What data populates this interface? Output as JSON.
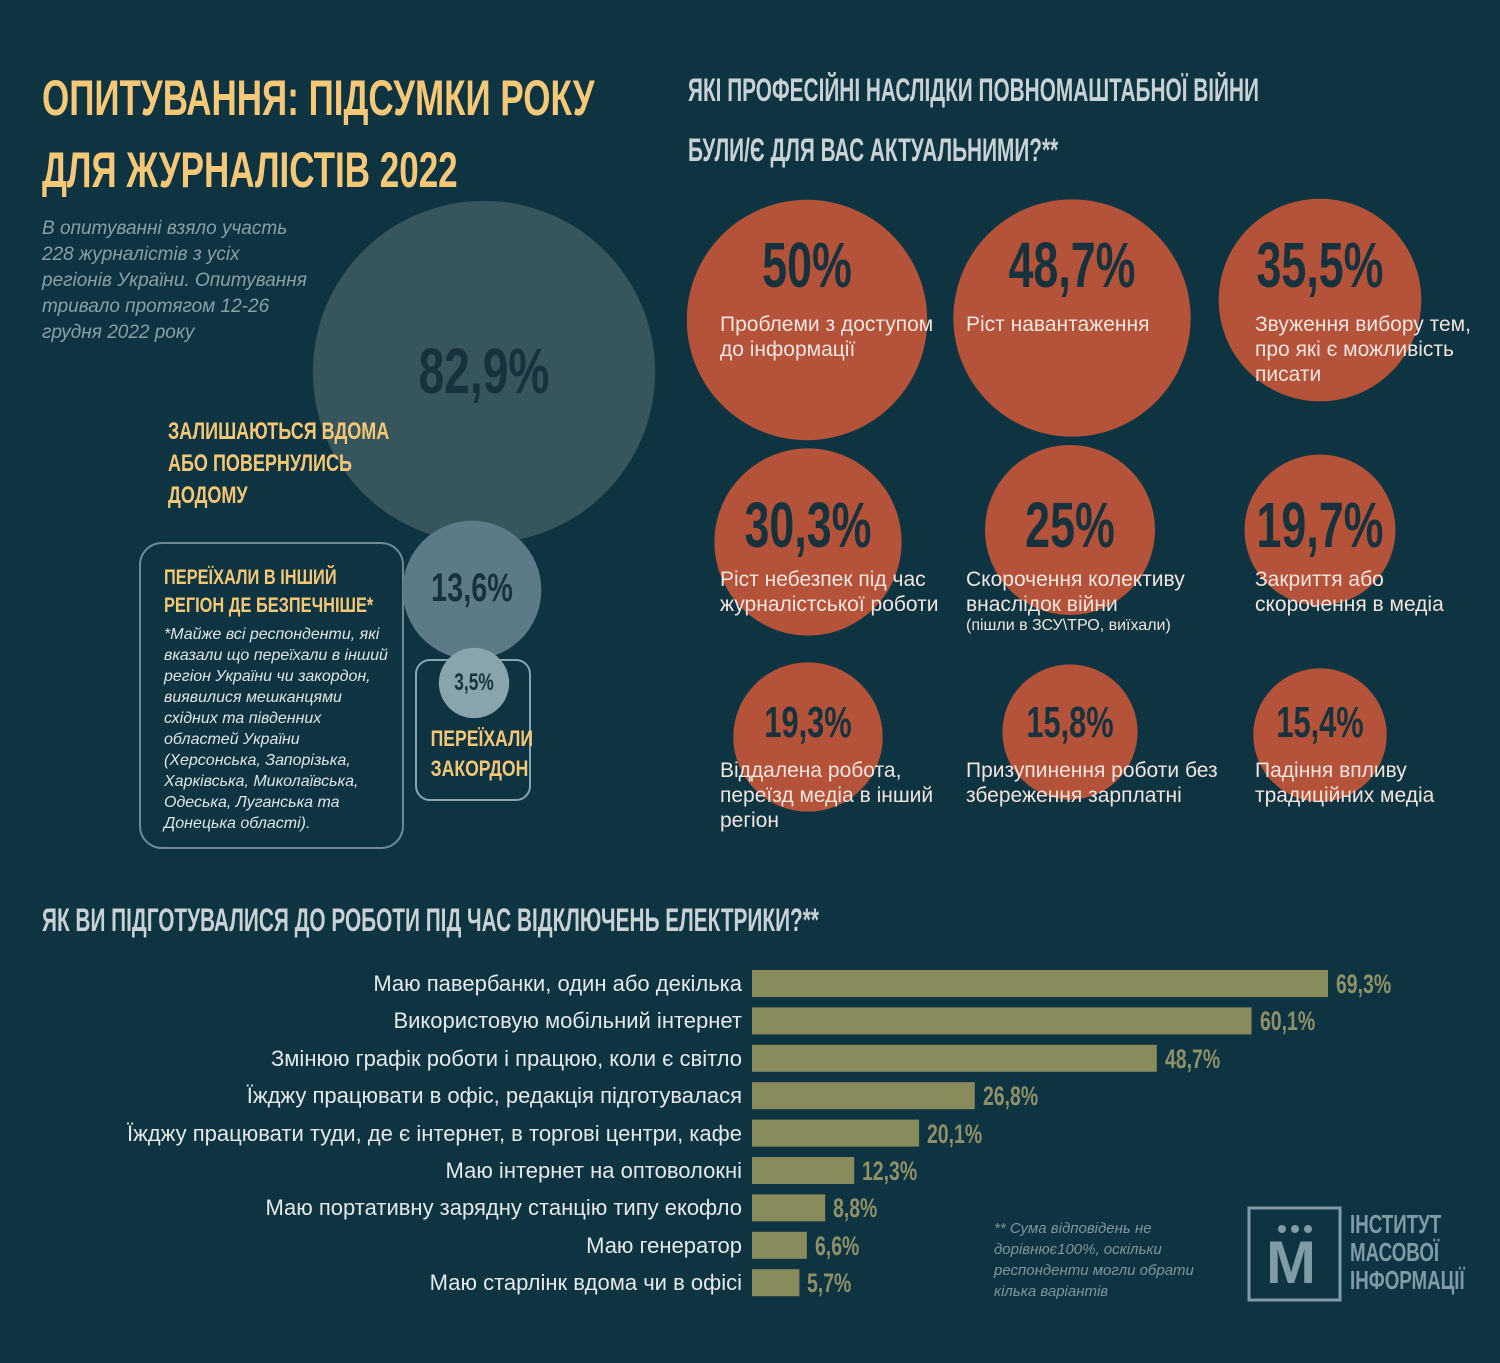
{
  "title": "ОПИТУВАННЯ: ПІДСУМКИ РОКУ ДЛЯ ЖУРНАЛІСТІВ 2022",
  "intro": "В опитуванні взяло участь 228 журналістів з усіх регіонів України. Опитування тривало протягом 12-26 грудня 2022 року",
  "footnote": "** Сума відповідень не дорівнює100%, оскільки респонденти могли обрати кілька варіантів",
  "logo": {
    "mark": "М",
    "text": "ІНСТИТУТ МАСОВОЇ ІНФОРМАЦІЇ"
  },
  "chart_data": [
    {
      "type": "bubble",
      "categories": [
        "ЗАЛИШАЮТЬСЯ ВДОМА АБО ПОВЕРНУЛИСЬ ДОДОМУ",
        "ПЕРЕЇХАЛИ В ІНШИЙ РЕГІОН ДЕ БЕЗПЕЧНІШЕ*",
        "ПЕРЕЇХАЛИ ЗАКОРДОН"
      ],
      "values": [
        82.9,
        13.6,
        3.5
      ],
      "value_labels": [
        "82,9%",
        "13,6%",
        "3,5%"
      ],
      "notes": [
        null,
        "*Майже всі респонденти, які вказали що переїхали в інший регіон України чи закордон, виявилися мешканцями східних та південних областей України (Херсонська, Запорізька, Харківська, Миколаївська, Одеська, Луганська та Донецька області).",
        null
      ],
      "colors": [
        "#37555d",
        "#5c7b86",
        "#8aa4ad"
      ]
    },
    {
      "type": "circles",
      "title": "ЯКІ ПРОФЕСІЙНІ НАСЛІДКИ ПОВНОМАШТАБНОЇ ВІЙНИ БУЛИ/Є ДЛЯ ВАС АКТУАЛЬНИМИ?**",
      "categories": [
        "Проблеми з доступом до інформації",
        "Ріст навантаження",
        "Звуження вибору тем, про які є можливість писати",
        "Ріст небезпек під час журналістської роботи",
        "Скорочення колективу внаслідок війни",
        "Закриття або скорочення в медіа",
        "Віддалена робота, переїзд медіа в інший регіон",
        "Призупинення роботи без збереження зарплатні",
        "Падіння впливу традиційних медіа"
      ],
      "values": [
        50,
        48.7,
        35.5,
        30.3,
        25,
        19.7,
        19.3,
        15.8,
        15.4
      ],
      "value_labels": [
        "50%",
        "48,7%",
        "35,5%",
        "30,3%",
        "25%",
        "19,7%",
        "19,3%",
        "15,8%",
        "15,4%"
      ],
      "notes": [
        null,
        null,
        null,
        null,
        "(пішли в ЗСУ\\ТРО, виїхали)",
        null,
        null,
        null,
        null
      ],
      "color": "#b5533a"
    },
    {
      "type": "bar",
      "title": "ЯК ВИ ПІДГОТУВАЛИСЯ ДО РОБОТИ ПІД ЧАС ВІДКЛЮЧЕНЬ ЕЛЕКТРИКИ?**",
      "categories": [
        "Маю павербанки, один або декілька",
        "Використовую мобільний інтернет",
        "Змінюю графік роботи і працюю, коли є світло",
        "Їжджу працювати в офіс, редакція підготувалася",
        "Їжджу працювати туди, де є інтернет, в торгові центри, кафе",
        "Маю інтернет на оптоволокні",
        "Маю портативну зарядну станцію типу екофло",
        "Маю генератор",
        "Маю старлінк вдома чи в офісі"
      ],
      "values": [
        69.3,
        60.1,
        48.7,
        26.8,
        20.1,
        12.3,
        8.8,
        6.6,
        5.7
      ],
      "value_labels": [
        "69,3%",
        "60,1%",
        "48,7%",
        "26,8%",
        "20,1%",
        "12,3%",
        "8,8%",
        "6,6%",
        "5,7%"
      ],
      "color": "#898b5c"
    }
  ]
}
